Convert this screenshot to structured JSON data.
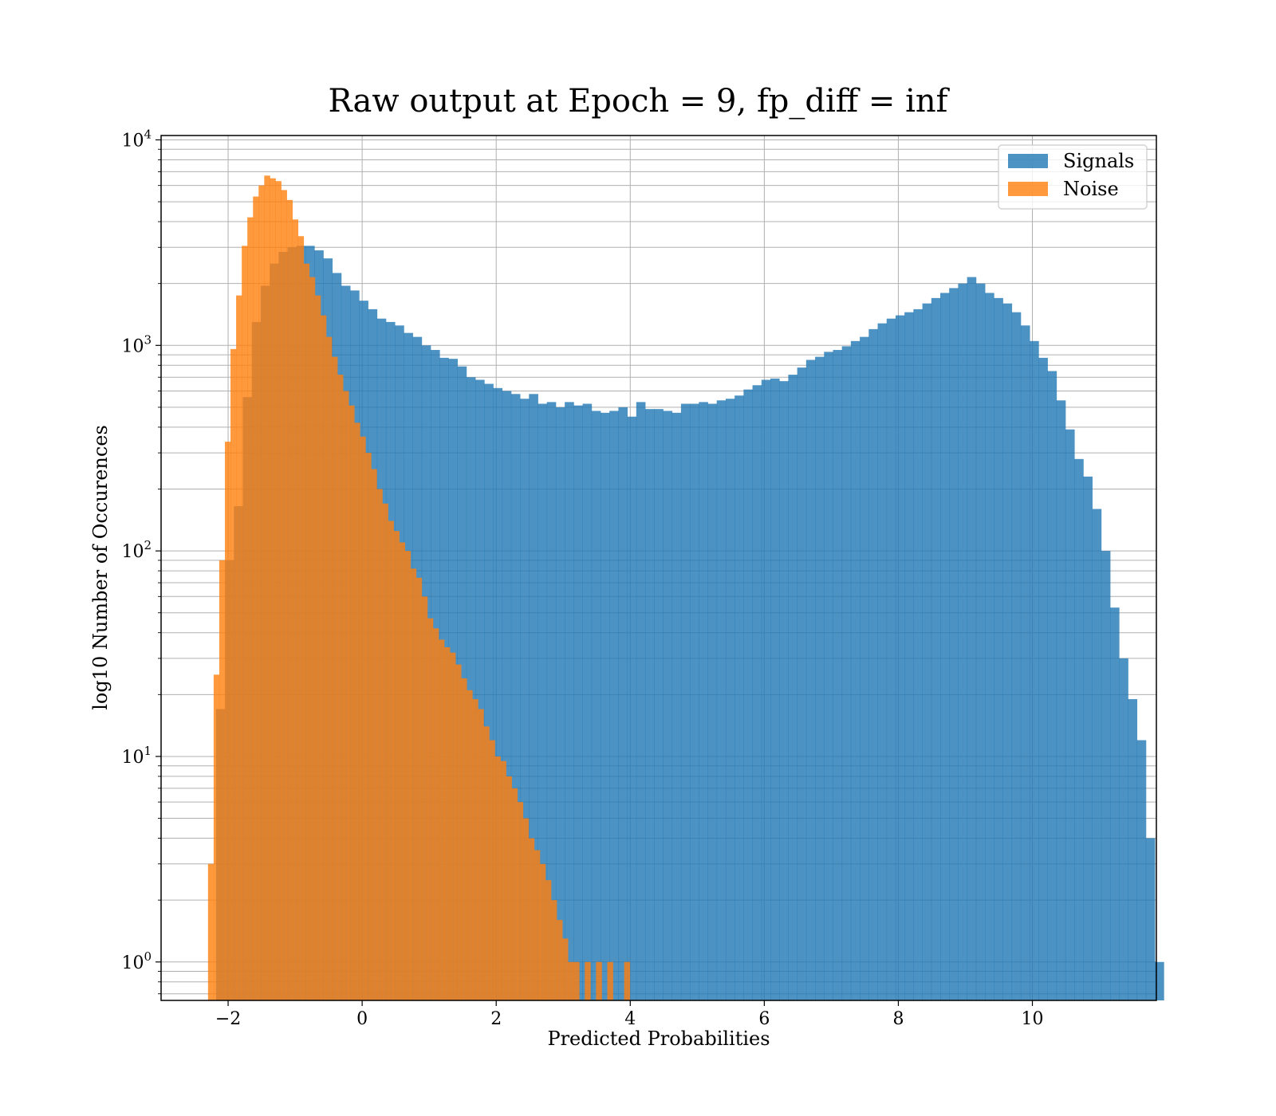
{
  "chart_data": {
    "type": "histogram",
    "title": "Raw output at Epoch = 9, fp_diff = inf",
    "xlabel": "Predicted Probabilities",
    "ylabel": "log10 Number of Occurences",
    "xlim": [
      -3.0,
      11.85
    ],
    "ylim": [
      0.65,
      10500
    ],
    "yscale": "log",
    "grid": true,
    "legend_position": "top-right",
    "xticks": [
      {
        "value": -2,
        "label": "−2"
      },
      {
        "value": 0,
        "label": "0"
      },
      {
        "value": 2,
        "label": "2"
      },
      {
        "value": 4,
        "label": "4"
      },
      {
        "value": 6,
        "label": "6"
      },
      {
        "value": 8,
        "label": "8"
      },
      {
        "value": 10,
        "label": "10"
      }
    ],
    "yticks": [
      {
        "value": 1,
        "base": "10",
        "exp": "0"
      },
      {
        "value": 10,
        "base": "10",
        "exp": "1"
      },
      {
        "value": 100,
        "base": "10",
        "exp": "2"
      },
      {
        "value": 1000,
        "base": "10",
        "exp": "3"
      },
      {
        "value": 10000,
        "base": "10",
        "exp": "4"
      }
    ],
    "series": [
      {
        "name": "Signals",
        "color": "#1f77b4",
        "opacity": 0.8,
        "bin_start": -2.18,
        "bin_width": 0.1334,
        "values": [
          17,
          90,
          165,
          560,
          1300,
          1950,
          2500,
          2850,
          3000,
          3050,
          3050,
          2900,
          2650,
          2250,
          1950,
          1850,
          1650,
          1500,
          1350,
          1300,
          1250,
          1150,
          1100,
          1000,
          950,
          870,
          860,
          790,
          700,
          680,
          650,
          620,
          600,
          580,
          550,
          580,
          520,
          530,
          500,
          530,
          510,
          520,
          480,
          470,
          480,
          500,
          450,
          530,
          490,
          490,
          480,
          470,
          520,
          520,
          530,
          520,
          540,
          550,
          570,
          610,
          640,
          680,
          690,
          670,
          720,
          780,
          850,
          880,
          930,
          950,
          990,
          1050,
          1100,
          1200,
          1280,
          1350,
          1400,
          1450,
          1500,
          1600,
          1700,
          1800,
          1900,
          2000,
          2150,
          2000,
          1800,
          1700,
          1600,
          1450,
          1250,
          1050,
          870,
          750,
          540,
          390,
          280,
          230,
          160,
          100,
          53,
          30,
          19,
          12,
          4,
          1
        ]
      },
      {
        "name": "Noise",
        "color": "#ff7f0e",
        "opacity": 0.8,
        "bin_start": -2.3,
        "bin_width": 0.0839,
        "values": [
          3,
          25,
          90,
          340,
          960,
          1750,
          3050,
          4200,
          5300,
          6000,
          6700,
          6500,
          6300,
          5700,
          5100,
          4100,
          3400,
          2500,
          2150,
          1750,
          1400,
          1100,
          880,
          720,
          600,
          510,
          420,
          360,
          300,
          250,
          200,
          170,
          140,
          125,
          110,
          100,
          82,
          74,
          60,
          47,
          42,
          37,
          34,
          32,
          28,
          24,
          21,
          19,
          17,
          14,
          12,
          10,
          9.5,
          8,
          7,
          6,
          5,
          4,
          3.5,
          3,
          2.5,
          2,
          1.6,
          1.3,
          1,
          1,
          0,
          1,
          0,
          1,
          0,
          1,
          0,
          0,
          1
        ]
      }
    ]
  }
}
